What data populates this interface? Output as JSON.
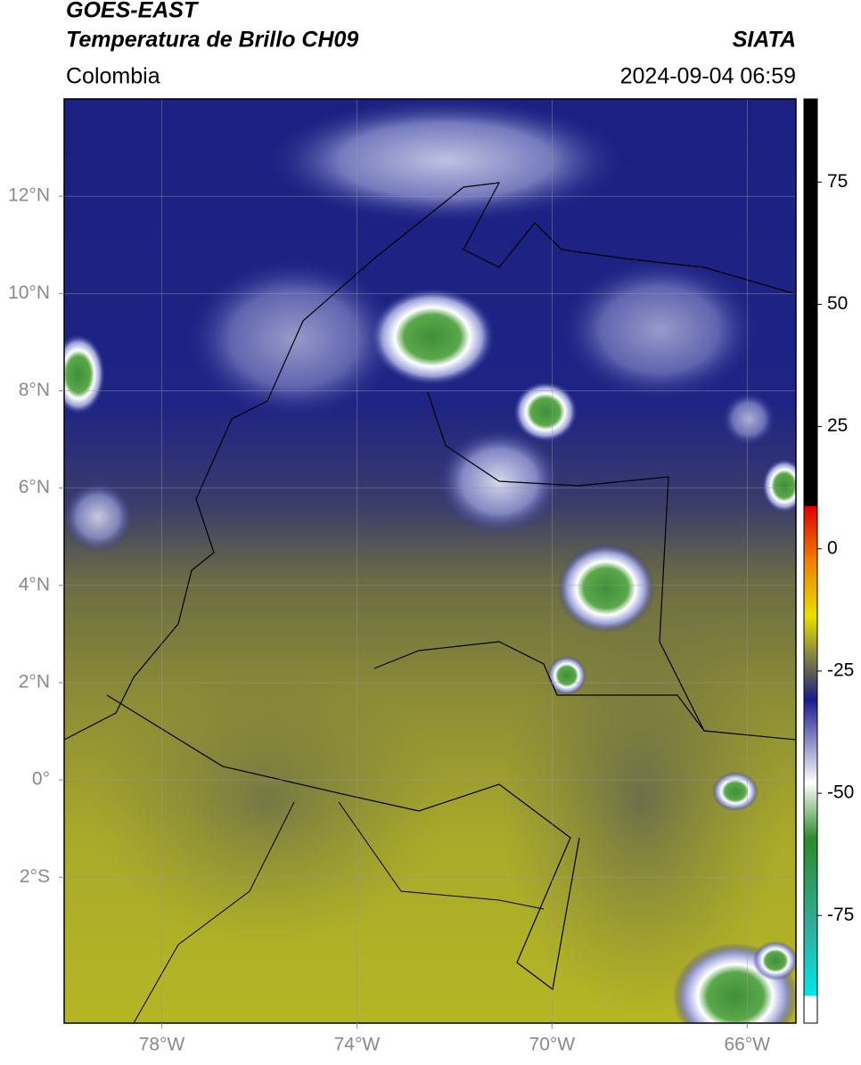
{
  "header": {
    "title": "GOES-EAST",
    "subtitle": "Temperatura de Brillo CH09",
    "source": "SIATA",
    "region": "Colombia",
    "datetime": "2024-09-04 06:59"
  },
  "map": {
    "lon_range": [
      -80,
      -65
    ],
    "lat_range": [
      -5,
      14
    ],
    "lat_ticks": [
      {
        "value": 12,
        "label": "12°N"
      },
      {
        "value": 10,
        "label": "10°N"
      },
      {
        "value": 8,
        "label": "8°N"
      },
      {
        "value": 6,
        "label": "6°N"
      },
      {
        "value": 4,
        "label": "4°N"
      },
      {
        "value": 2,
        "label": "2°N"
      },
      {
        "value": 0,
        "label": "0°"
      },
      {
        "value": -2,
        "label": "2°S"
      }
    ],
    "lon_ticks": [
      {
        "value": -78,
        "label": "78°W"
      },
      {
        "value": -74,
        "label": "74°W"
      },
      {
        "value": -70,
        "label": "70°W"
      },
      {
        "value": -66,
        "label": "66°W"
      }
    ],
    "grid": true
  },
  "colorbar": {
    "range": [
      -97,
      92
    ],
    "ticks": [
      75,
      50,
      25,
      0,
      -25,
      -50,
      -75
    ]
  }
}
